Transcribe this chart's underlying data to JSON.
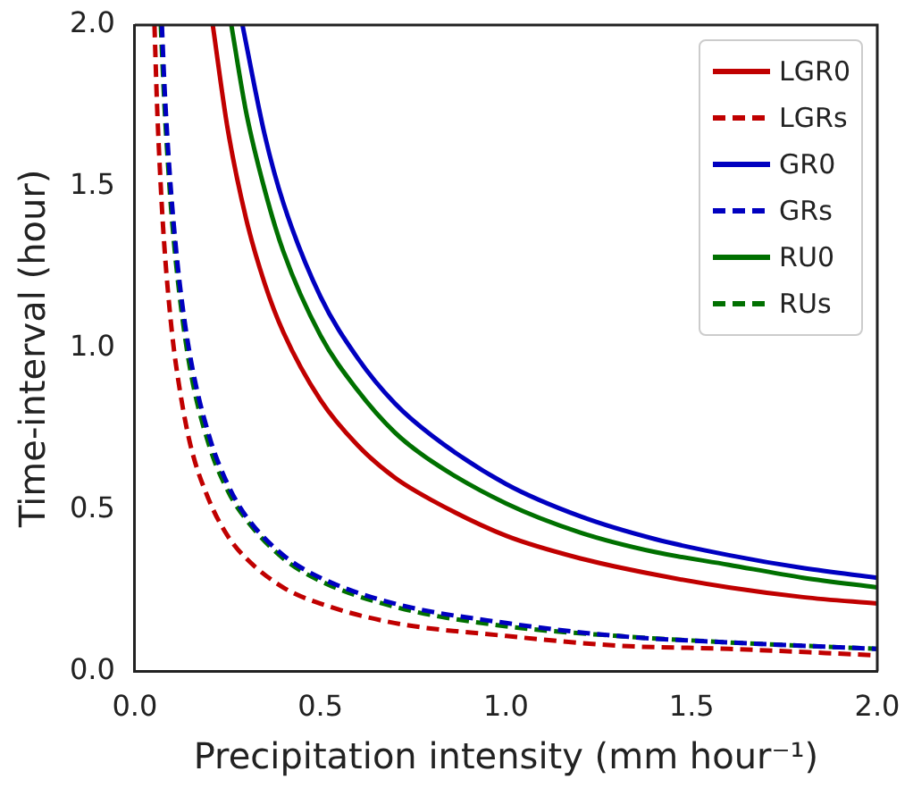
{
  "chart_data": {
    "type": "line",
    "xlabel": "Precipitation intensity (mm hour⁻¹)",
    "ylabel": "Time-interval (hour)",
    "xlim": [
      0,
      2
    ],
    "ylim": [
      0,
      2
    ],
    "xticks": [
      {
        "value": 0,
        "label": "0.0"
      },
      {
        "value": 0.5,
        "label": "0.5"
      },
      {
        "value": 1,
        "label": "1.0"
      },
      {
        "value": 1.5,
        "label": "1.5"
      },
      {
        "value": 2,
        "label": "2.0"
      }
    ],
    "yticks": [
      {
        "value": 0,
        "label": "0.0"
      },
      {
        "value": 0.5,
        "label": "0.5"
      },
      {
        "value": 1,
        "label": "1.0"
      },
      {
        "value": 1.5,
        "label": "1.5"
      },
      {
        "value": 2,
        "label": "2.0"
      }
    ],
    "grid": false,
    "legend": "top right",
    "marker": "none",
    "series": [
      {
        "name": "LGR0",
        "color": "#c00000",
        "line_style": "solid",
        "x": [
          0.21,
          0.25,
          0.3,
          0.35,
          0.4,
          0.5,
          0.6,
          0.7,
          0.8,
          1.0,
          1.2,
          1.4,
          1.6,
          1.8,
          2.0
        ],
        "values": [
          2.0,
          1.68,
          1.4,
          1.2,
          1.05,
          0.84,
          0.7,
          0.6,
          0.53,
          0.42,
          0.35,
          0.3,
          0.26,
          0.23,
          0.21
        ]
      },
      {
        "name": "LGRs",
        "color": "#c00000",
        "line_style": "dashed",
        "x": [
          0.053,
          0.06,
          0.07,
          0.08,
          0.1,
          0.12,
          0.15,
          0.2,
          0.25,
          0.3,
          0.4,
          0.5,
          0.7,
          1.0,
          1.3,
          1.6,
          2.0
        ],
        "values": [
          2.0,
          1.75,
          1.5,
          1.31,
          1.05,
          0.88,
          0.7,
          0.53,
          0.42,
          0.35,
          0.26,
          0.21,
          0.15,
          0.11,
          0.08,
          0.07,
          0.05
        ]
      },
      {
        "name": "GR0",
        "color": "#0000c0",
        "line_style": "solid",
        "x": [
          0.29,
          0.35,
          0.4,
          0.5,
          0.6,
          0.7,
          0.8,
          1.0,
          1.2,
          1.4,
          1.6,
          1.8,
          2.0
        ],
        "values": [
          2.0,
          1.66,
          1.45,
          1.16,
          0.97,
          0.83,
          0.73,
          0.58,
          0.48,
          0.41,
          0.36,
          0.32,
          0.29
        ]
      },
      {
        "name": "GRs",
        "color": "#0000c0",
        "line_style": "dashed",
        "x": [
          0.073,
          0.08,
          0.09,
          0.1,
          0.12,
          0.15,
          0.2,
          0.25,
          0.3,
          0.4,
          0.5,
          0.7,
          1.0,
          1.3,
          1.6,
          2.0
        ],
        "values": [
          2.0,
          1.81,
          1.61,
          1.45,
          1.21,
          0.97,
          0.73,
          0.58,
          0.48,
          0.36,
          0.29,
          0.21,
          0.15,
          0.11,
          0.09,
          0.07
        ]
      },
      {
        "name": "RU0",
        "color": "#007000",
        "line_style": "solid",
        "x": [
          0.26,
          0.3,
          0.35,
          0.4,
          0.5,
          0.6,
          0.7,
          0.8,
          1.0,
          1.2,
          1.4,
          1.6,
          1.8,
          2.0
        ],
        "values": [
          2.0,
          1.73,
          1.49,
          1.3,
          1.04,
          0.87,
          0.74,
          0.65,
          0.52,
          0.43,
          0.37,
          0.33,
          0.29,
          0.26
        ]
      },
      {
        "name": "RUs",
        "color": "#007000",
        "line_style": "dashed",
        "x": [
          0.07,
          0.08,
          0.09,
          0.1,
          0.12,
          0.15,
          0.2,
          0.25,
          0.3,
          0.4,
          0.5,
          0.7,
          1.0,
          1.3,
          1.6,
          2.0
        ],
        "values": [
          2.0,
          1.75,
          1.56,
          1.4,
          1.17,
          0.93,
          0.7,
          0.56,
          0.47,
          0.35,
          0.28,
          0.2,
          0.14,
          0.11,
          0.09,
          0.07
        ]
      }
    ]
  }
}
